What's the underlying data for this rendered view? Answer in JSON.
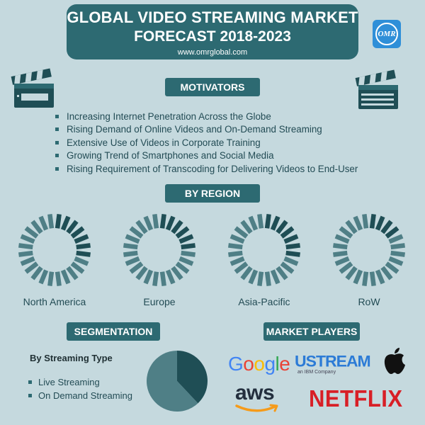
{
  "header": {
    "title_line1": "GLOBAL VIDEO STREAMING MARKET",
    "title_line2": "FORECAST 2018-2023",
    "website": "www.omrglobal.com",
    "logo_text": "OMR"
  },
  "motivators": {
    "heading": "MOTIVATORS",
    "items": [
      "Increasing Internet Penetration Across the Globe",
      "Rising Demand of Online Videos and On-Demand Streaming",
      "Extensive Use of Videos in Corporate Training",
      "Growing Trend of Smartphones and Social Media",
      "Rising Requirement of Transcoding for Delivering Videos to End-User"
    ]
  },
  "region": {
    "heading": "BY REGION",
    "items": [
      {
        "label": "North America",
        "filled_fraction": 0.3
      },
      {
        "label": "Europe",
        "filled_fraction": 0.25
      },
      {
        "label": "Asia-Pacific",
        "filled_fraction": 0.3
      },
      {
        "label": "RoW",
        "filled_fraction": 0.15
      }
    ]
  },
  "segmentation": {
    "heading": "SEGMENTATION",
    "subtitle": "By Streaming Type",
    "items": [
      "Live Streaming",
      "On Demand Streaming"
    ],
    "pie_fractions": [
      0.38,
      0.62
    ]
  },
  "players": {
    "heading": "MARKET PLAYERS",
    "google": "Google",
    "ustream": "USTREAM",
    "ustream_sub": "an IBM Company",
    "aws": "aws",
    "netflix": "NETFLIX"
  },
  "colors": {
    "background": "#c5d9de",
    "primary": "#2d6a72",
    "dark_teal": "#1f4e55",
    "light_ring": "#4f7f86"
  },
  "icons": [
    "clapperboard-icon",
    "apple-icon"
  ]
}
